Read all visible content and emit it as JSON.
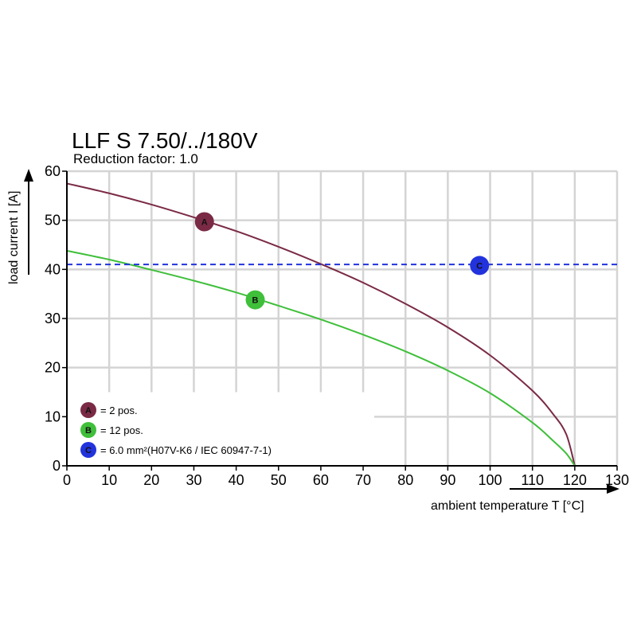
{
  "chart_data": {
    "type": "line",
    "title": "LLF S 7.50/../180V",
    "subtitle": "Reduction factor: 1.0",
    "xlabel": "ambient temperature T [°C]",
    "ylabel": "load current I [A]",
    "xlim": [
      0,
      130
    ],
    "ylim": [
      0,
      60
    ],
    "xticks": [
      0,
      10,
      20,
      30,
      40,
      50,
      60,
      70,
      80,
      90,
      100,
      110,
      120,
      130
    ],
    "yticks": [
      0,
      10,
      20,
      30,
      40,
      50,
      60
    ],
    "grid": true,
    "series": [
      {
        "key": "A",
        "name": "= 2 pos.",
        "color": "#7a2a45",
        "style": "solid",
        "x": [
          0,
          10,
          20,
          30,
          40,
          50,
          60,
          70,
          80,
          90,
          100,
          110,
          115,
          118,
          120
        ],
        "y": [
          57.5,
          55.5,
          53.2,
          50.6,
          47.8,
          44.6,
          41.1,
          37.3,
          33.0,
          28.2,
          22.5,
          15.3,
          10.4,
          6.4,
          0
        ],
        "marker_x": 32.5,
        "marker_y": 49.7
      },
      {
        "key": "B",
        "name": "= 12 pos.",
        "color": "#3fbf3a",
        "style": "solid",
        "x": [
          0,
          10,
          20,
          30,
          40,
          50,
          60,
          70,
          80,
          90,
          100,
          110,
          115,
          118,
          120
        ],
        "y": [
          43.8,
          42.0,
          39.9,
          37.7,
          35.3,
          32.6,
          29.8,
          26.7,
          23.3,
          19.4,
          14.8,
          8.8,
          5.0,
          2.5,
          0
        ],
        "marker_x": 44.5,
        "marker_y": 33.8
      },
      {
        "key": "C",
        "name": "= 6.0 mm²(H07V-K6 / IEC 60947-7-1)",
        "color": "#2233dd",
        "style": "dashed",
        "x": [
          0,
          130
        ],
        "y": [
          41,
          41
        ],
        "marker_x": 97.5,
        "marker_y": 40.8
      }
    ],
    "legend_position": "bottom-left"
  }
}
